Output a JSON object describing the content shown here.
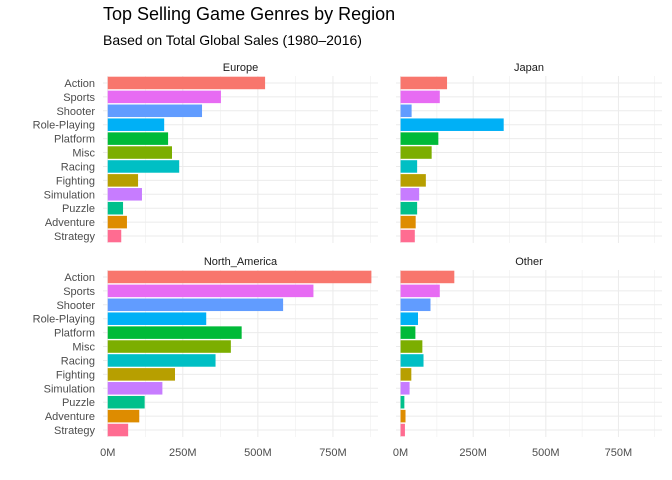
{
  "chart_data": {
    "type": "bar",
    "orientation": "horizontal",
    "facet": "wrap 2x2",
    "title": "Top Selling Game Genres by Region",
    "subtitle": "Based on Total Global Sales (1980–2016)",
    "xlabel": "",
    "ylabel": "",
    "xlim": [
      0,
      900
    ],
    "x_unit": "M",
    "x_ticks": [
      0,
      250,
      500,
      750
    ],
    "x_tick_labels": [
      "0M",
      "250M",
      "500M",
      "750M"
    ],
    "grid": true,
    "legend": "none",
    "categories": [
      "Action",
      "Sports",
      "Shooter",
      "Role-Playing",
      "Platform",
      "Misc",
      "Racing",
      "Fighting",
      "Simulation",
      "Puzzle",
      "Adventure",
      "Strategy"
    ],
    "category_colors": [
      "#F8766D",
      "#E76BF3",
      "#619CFF",
      "#00B0F6",
      "#00BA38",
      "#7CAE00",
      "#00BFC4",
      "#B79F00",
      "#C77CFF",
      "#00C08B",
      "#DE8C00",
      "#FF6C91"
    ],
    "panels": [
      {
        "name": "Europe",
        "values": [
          524,
          377,
          314,
          188,
          201,
          214,
          238,
          101,
          114,
          51,
          64,
          45
        ]
      },
      {
        "name": "Japan",
        "values": [
          160,
          135,
          38,
          355,
          130,
          107,
          57,
          87,
          64,
          57,
          52,
          49
        ]
      },
      {
        "name": "North_America",
        "values": [
          878,
          685,
          584,
          328,
          446,
          410,
          359,
          224,
          182,
          123,
          105,
          68
        ]
      },
      {
        "name": "Other",
        "values": [
          185,
          135,
          103,
          60,
          51,
          75,
          79,
          37,
          31,
          13,
          17,
          15
        ]
      }
    ]
  }
}
